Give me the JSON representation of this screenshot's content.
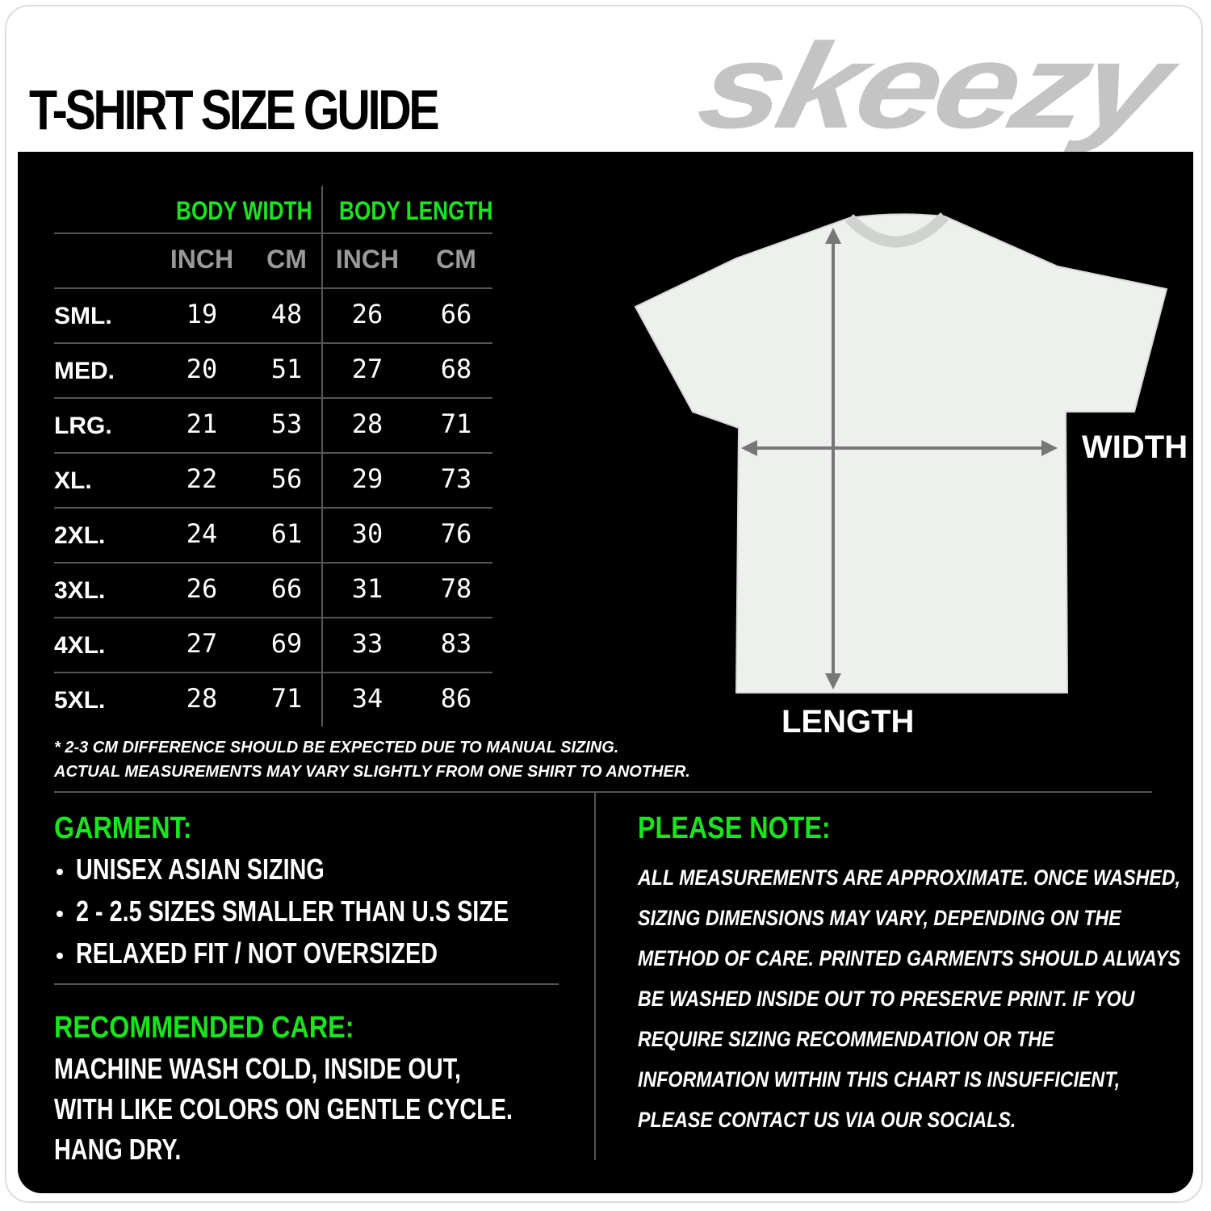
{
  "header": {
    "title": "T-SHIRT SIZE GUIDE",
    "brand": "skeezy"
  },
  "table": {
    "groups": [
      "BODY WIDTH",
      "BODY LENGTH"
    ],
    "units": [
      "INCH",
      "CM",
      "INCH",
      "CM"
    ],
    "rows": [
      {
        "size": "SML.",
        "values": [
          19,
          48,
          26,
          66
        ]
      },
      {
        "size": "MED.",
        "values": [
          20,
          51,
          27,
          68
        ]
      },
      {
        "size": "LRG.",
        "values": [
          21,
          53,
          28,
          71
        ]
      },
      {
        "size": "XL.",
        "values": [
          22,
          56,
          29,
          73
        ]
      },
      {
        "size": "2XL.",
        "values": [
          24,
          61,
          30,
          76
        ]
      },
      {
        "size": "3XL.",
        "values": [
          26,
          66,
          31,
          78
        ]
      },
      {
        "size": "4XL.",
        "values": [
          27,
          69,
          33,
          83
        ]
      },
      {
        "size": "5XL.",
        "values": [
          28,
          71,
          34,
          86
        ]
      }
    ],
    "footnote": [
      "* 2-3 CM DIFFERENCE SHOULD BE EXPECTED DUE TO MANUAL SIZING.",
      "ACTUAL MEASUREMENTS MAY VARY SLIGHTLY FROM ONE SHIRT TO ANOTHER."
    ]
  },
  "diagram": {
    "width_label": "WIDTH",
    "length_label": "LENGTH"
  },
  "garment": {
    "heading": "GARMENT:",
    "items": [
      "UNISEX ASIAN SIZING",
      "2 - 2.5 SIZES SMALLER THAN U.S SIZE",
      "RELAXED FIT / NOT OVERSIZED"
    ]
  },
  "care": {
    "heading": "RECOMMENDED CARE:",
    "lines": [
      "MACHINE WASH COLD, INSIDE OUT,",
      "WITH LIKE COLORS ON GENTLE CYCLE.",
      "HANG DRY."
    ]
  },
  "note": {
    "heading": "PLEASE NOTE:",
    "lines": [
      "ALL MEASUREMENTS ARE APPROXIMATE. ONCE  WASHED,",
      "SIZING DIMENSIONS MAY VARY, DEPENDING ON THE",
      "METHOD OF CARE. PRINTED GARMENTS SHOULD ALWAYS",
      "BE WASHED INSIDE OUT TO PRESERVE PRINT.  IF YOU",
      "REQUIRE SIZING  RECOMMENDATION OR THE",
      "INFORMATION WITHIN THIS CHART IS INSUFFICIENT,",
      "PLEASE CONTACT US VIA OUR SOCIALS."
    ]
  }
}
